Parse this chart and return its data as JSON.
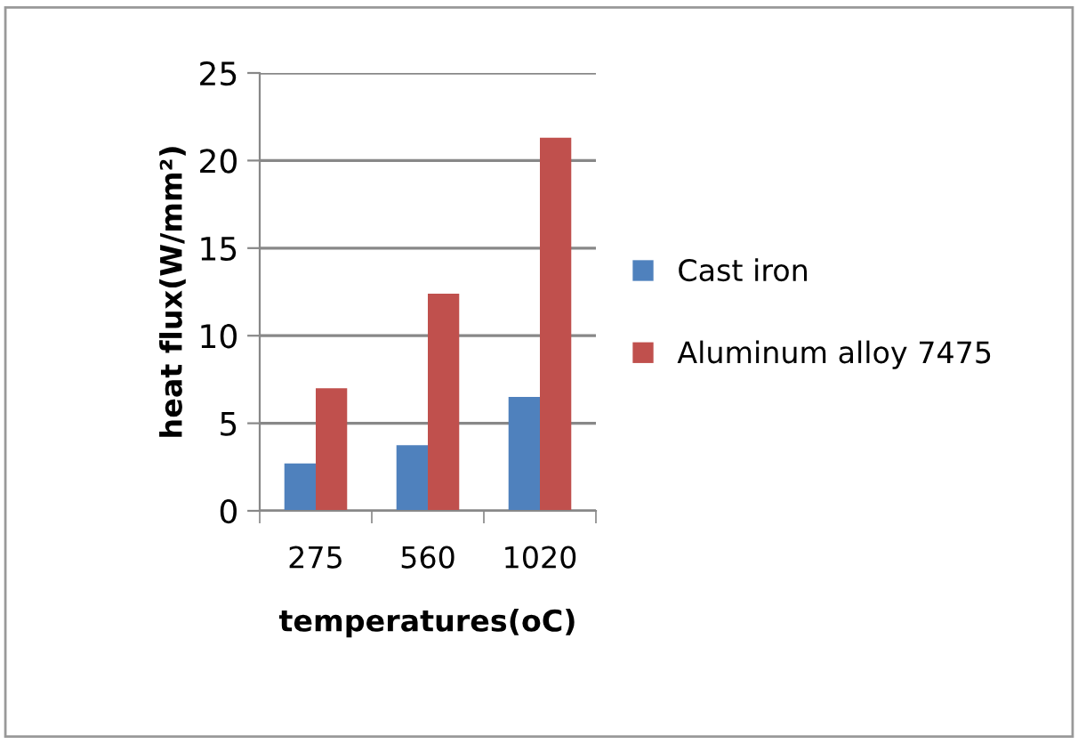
{
  "chart_data": {
    "type": "bar",
    "xlabel": "temperatures(oC)",
    "ylabel": "heat flux(W/mm²)",
    "categories": [
      "275",
      "560",
      "1020"
    ],
    "series": [
      {
        "name": "Cast iron",
        "color": "#4f81bd",
        "values": [
          2.7,
          3.75,
          6.5
        ]
      },
      {
        "name": "Aluminum alloy 7475",
        "color": "#c0504d",
        "values": [
          7.0,
          12.4,
          21.3
        ]
      }
    ],
    "ylim": [
      0,
      25
    ],
    "yticks": [
      0,
      5,
      10,
      15,
      20,
      25
    ],
    "grid": "y",
    "legend": "right"
  }
}
